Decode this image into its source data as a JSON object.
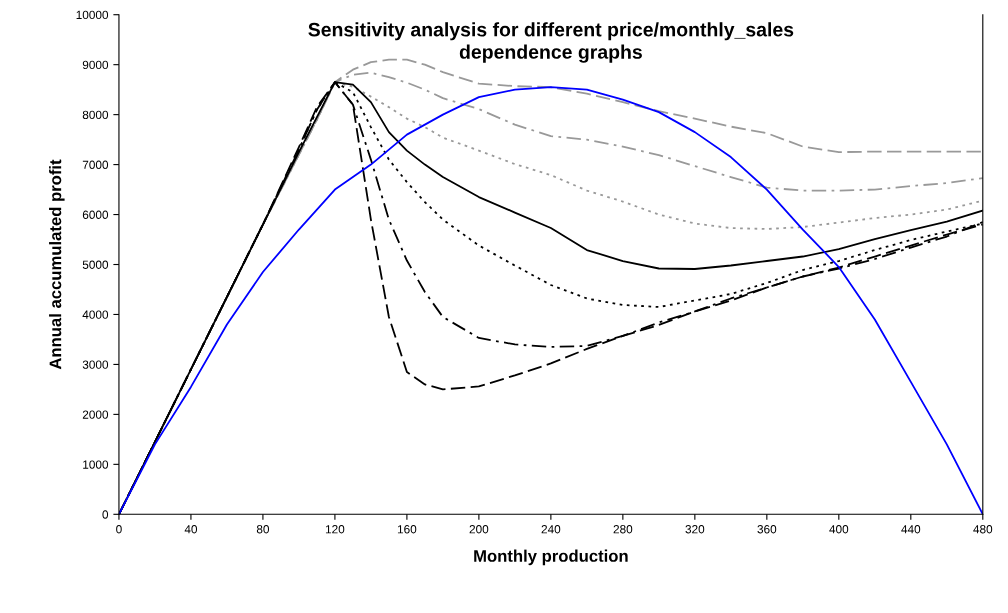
{
  "chart_data": {
    "type": "line",
    "title": "Sensitivity analysis for different price/monthly_sales\ndependence graphs",
    "xlabel": "Monthly production",
    "ylabel": "Annual accumulated profit",
    "x": [
      0,
      20,
      40,
      60,
      80,
      100,
      110,
      120,
      130,
      140,
      150,
      160,
      170,
      180,
      200,
      220,
      240,
      260,
      280,
      300,
      320,
      340,
      360,
      380,
      400,
      420,
      440,
      460,
      480
    ],
    "xlim": [
      0,
      480
    ],
    "xticks": [
      0,
      40,
      80,
      120,
      160,
      200,
      240,
      280,
      320,
      360,
      400,
      440,
      480
    ],
    "ylim": [
      0,
      10000
    ],
    "yticks": [
      0,
      1000,
      2000,
      3000,
      4000,
      5000,
      6000,
      7000,
      8000,
      9000,
      10000
    ],
    "grid": false,
    "marker": "none",
    "series": [
      {
        "color": "#999999",
        "line_style": "dashed",
        "values": [
          0,
          1450,
          2900,
          4350,
          5800,
          7200,
          7900,
          8650,
          8900,
          9050,
          9100,
          9100,
          9000,
          8850,
          8620,
          8570,
          8550,
          8420,
          8250,
          8070,
          7920,
          7760,
          7630,
          7360,
          7250,
          7260,
          7260,
          7260,
          7260
        ]
      },
      {
        "color": "#999999",
        "line_style": "dashdot",
        "values": [
          0,
          1450,
          2900,
          4350,
          5800,
          7200,
          7900,
          8650,
          8800,
          8840,
          8750,
          8640,
          8500,
          8330,
          8110,
          7800,
          7570,
          7500,
          7360,
          7190,
          6970,
          6750,
          6540,
          6480,
          6480,
          6500,
          6570,
          6630,
          6730
        ]
      },
      {
        "color": "#999999",
        "line_style": "dotted",
        "values": [
          0,
          1450,
          2900,
          4350,
          5800,
          7200,
          7900,
          8650,
          8560,
          8360,
          8150,
          7920,
          7750,
          7540,
          7280,
          7010,
          6790,
          6480,
          6260,
          6000,
          5820,
          5730,
          5710,
          5750,
          5840,
          5930,
          6000,
          6100,
          6280
        ]
      },
      {
        "color": "#000000",
        "line_style": "solid",
        "values": [
          0,
          1450,
          2900,
          4350,
          5800,
          7250,
          7950,
          8650,
          8600,
          8250,
          7650,
          7280,
          7000,
          6750,
          6350,
          6040,
          5730,
          5290,
          5070,
          4920,
          4910,
          4980,
          5070,
          5160,
          5310,
          5510,
          5690,
          5860,
          6080
        ]
      },
      {
        "color": "#000000",
        "line_style": "dotted",
        "values": [
          0,
          1450,
          2900,
          4350,
          5800,
          7300,
          8100,
          8650,
          8450,
          7750,
          7100,
          6650,
          6250,
          5900,
          5380,
          4980,
          4590,
          4320,
          4190,
          4150,
          4280,
          4410,
          4630,
          4890,
          5070,
          5290,
          5490,
          5660,
          5820
        ]
      },
      {
        "color": "#000000",
        "line_style": "dashdot",
        "values": [
          0,
          1450,
          2900,
          4350,
          5800,
          7300,
          8100,
          8650,
          8200,
          7100,
          5900,
          5080,
          4450,
          3950,
          3530,
          3400,
          3350,
          3370,
          3570,
          3840,
          4060,
          4320,
          4540,
          4760,
          4920,
          5110,
          5340,
          5560,
          5850
        ]
      },
      {
        "color": "#000000",
        "line_style": "dashed",
        "values": [
          0,
          1450,
          2900,
          4350,
          5800,
          7350,
          8150,
          8650,
          8200,
          5900,
          3950,
          2850,
          2600,
          2500,
          2560,
          2780,
          3020,
          3310,
          3570,
          3790,
          4060,
          4280,
          4540,
          4760,
          4940,
          5160,
          5380,
          5600,
          5800
        ]
      },
      {
        "color": "#0000ff",
        "line_style": "solid",
        "x": [
          0,
          20,
          40,
          60,
          80,
          100,
          120,
          140,
          160,
          180,
          200,
          220,
          240,
          260,
          280,
          300,
          320,
          340,
          360,
          380,
          400,
          420,
          440,
          460,
          480
        ],
        "values": [
          0,
          1400,
          2550,
          3800,
          4850,
          5700,
          6500,
          7000,
          7600,
          8000,
          8350,
          8500,
          8550,
          8500,
          8300,
          8050,
          7650,
          7150,
          6500,
          5700,
          4950,
          3900,
          2650,
          1400,
          0
        ]
      }
    ]
  }
}
